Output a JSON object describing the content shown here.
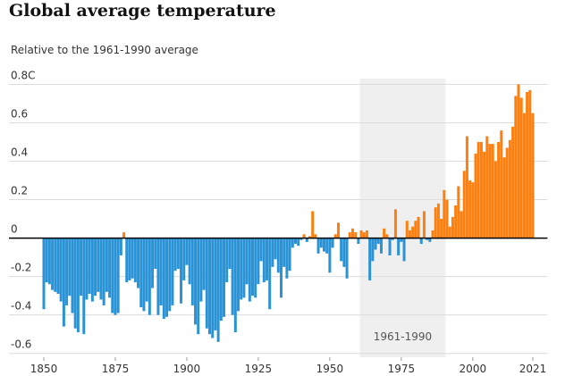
{
  "chart_data": {
    "type": "bar",
    "title": "Global average temperature",
    "subtitle": "Relative to the 1961-1990 average",
    "annotation": "1961-1990",
    "shaded_range": [
      1961,
      1990
    ],
    "x": [
      1850,
      1851,
      1852,
      1853,
      1854,
      1855,
      1856,
      1857,
      1858,
      1859,
      1860,
      1861,
      1862,
      1863,
      1864,
      1865,
      1866,
      1867,
      1868,
      1869,
      1870,
      1871,
      1872,
      1873,
      1874,
      1875,
      1876,
      1877,
      1878,
      1879,
      1880,
      1881,
      1882,
      1883,
      1884,
      1885,
      1886,
      1887,
      1888,
      1889,
      1890,
      1891,
      1892,
      1893,
      1894,
      1895,
      1896,
      1897,
      1898,
      1899,
      1900,
      1901,
      1902,
      1903,
      1904,
      1905,
      1906,
      1907,
      1908,
      1909,
      1910,
      1911,
      1912,
      1913,
      1914,
      1915,
      1916,
      1917,
      1918,
      1919,
      1920,
      1921,
      1922,
      1923,
      1924,
      1925,
      1926,
      1927,
      1928,
      1929,
      1930,
      1931,
      1932,
      1933,
      1934,
      1935,
      1936,
      1937,
      1938,
      1939,
      1940,
      1941,
      1942,
      1943,
      1944,
      1945,
      1946,
      1947,
      1948,
      1949,
      1950,
      1951,
      1952,
      1953,
      1954,
      1955,
      1956,
      1957,
      1958,
      1959,
      1960,
      1961,
      1962,
      1963,
      1964,
      1965,
      1966,
      1967,
      1968,
      1969,
      1970,
      1971,
      1972,
      1973,
      1974,
      1975,
      1976,
      1977,
      1978,
      1979,
      1980,
      1981,
      1982,
      1983,
      1984,
      1985,
      1986,
      1987,
      1988,
      1989,
      1990,
      1991,
      1992,
      1993,
      1994,
      1995,
      1996,
      1997,
      1998,
      1999,
      2000,
      2001,
      2002,
      2003,
      2004,
      2005,
      2006,
      2007,
      2008,
      2009,
      2010,
      2011,
      2012,
      2013,
      2014,
      2015,
      2016,
      2017,
      2018,
      2019,
      2020,
      2021
    ],
    "values": [
      -0.37,
      -0.23,
      -0.24,
      -0.27,
      -0.28,
      -0.29,
      -0.33,
      -0.46,
      -0.35,
      -0.3,
      -0.39,
      -0.47,
      -0.49,
      -0.3,
      -0.5,
      -0.32,
      -0.29,
      -0.33,
      -0.3,
      -0.28,
      -0.32,
      -0.35,
      -0.28,
      -0.31,
      -0.39,
      -0.4,
      -0.39,
      -0.09,
      0.03,
      -0.23,
      -0.22,
      -0.21,
      -0.23,
      -0.26,
      -0.36,
      -0.38,
      -0.33,
      -0.4,
      -0.26,
      -0.16,
      -0.4,
      -0.35,
      -0.42,
      -0.41,
      -0.38,
      -0.35,
      -0.17,
      -0.16,
      -0.34,
      -0.22,
      -0.14,
      -0.24,
      -0.35,
      -0.45,
      -0.5,
      -0.33,
      -0.27,
      -0.47,
      -0.5,
      -0.52,
      -0.48,
      -0.54,
      -0.43,
      -0.41,
      -0.23,
      -0.16,
      -0.4,
      -0.49,
      -0.38,
      -0.32,
      -0.31,
      -0.24,
      -0.33,
      -0.3,
      -0.31,
      -0.24,
      -0.12,
      -0.23,
      -0.22,
      -0.37,
      -0.15,
      -0.11,
      -0.18,
      -0.31,
      -0.15,
      -0.21,
      -0.17,
      -0.05,
      -0.03,
      -0.04,
      -0.01,
      0.02,
      -0.02,
      0.01,
      0.14,
      0.02,
      -0.08,
      -0.05,
      -0.07,
      -0.08,
      -0.18,
      -0.05,
      0.02,
      0.08,
      -0.12,
      -0.15,
      -0.21,
      0.03,
      0.05,
      0.03,
      -0.03,
      0.04,
      0.03,
      0.04,
      -0.22,
      -0.12,
      -0.06,
      -0.03,
      -0.08,
      0.05,
      0.02,
      -0.09,
      -0.01,
      0.15,
      -0.09,
      -0.02,
      -0.12,
      0.09,
      0.04,
      0.06,
      0.09,
      0.11,
      -0.03,
      0.14,
      -0.01,
      -0.02,
      0.04,
      0.16,
      0.18,
      0.1,
      0.25,
      0.2,
      0.06,
      0.11,
      0.17,
      0.27,
      0.14,
      0.35,
      0.53,
      0.3,
      0.29,
      0.44,
      0.5,
      0.5,
      0.45,
      0.53,
      0.49,
      0.49,
      0.4,
      0.5,
      0.56,
      0.42,
      0.47,
      0.51,
      0.58,
      0.74,
      0.8,
      0.73,
      0.65,
      0.76,
      0.77,
      0.65
    ],
    "positive_color": "#ff7f0e",
    "negative_color": "#2a93d5",
    "xlim": [
      1848,
      2023
    ],
    "xticks": [
      1850,
      1875,
      1900,
      1925,
      1950,
      1975,
      2000,
      2021
    ],
    "ylim": [
      -0.62,
      0.83
    ],
    "yticks": [
      -0.6,
      -0.4,
      -0.2,
      0,
      0.2,
      0.4,
      0.6,
      {
        "value": 0.8,
        "label": "0.8C"
      }
    ],
    "grid": true
  }
}
